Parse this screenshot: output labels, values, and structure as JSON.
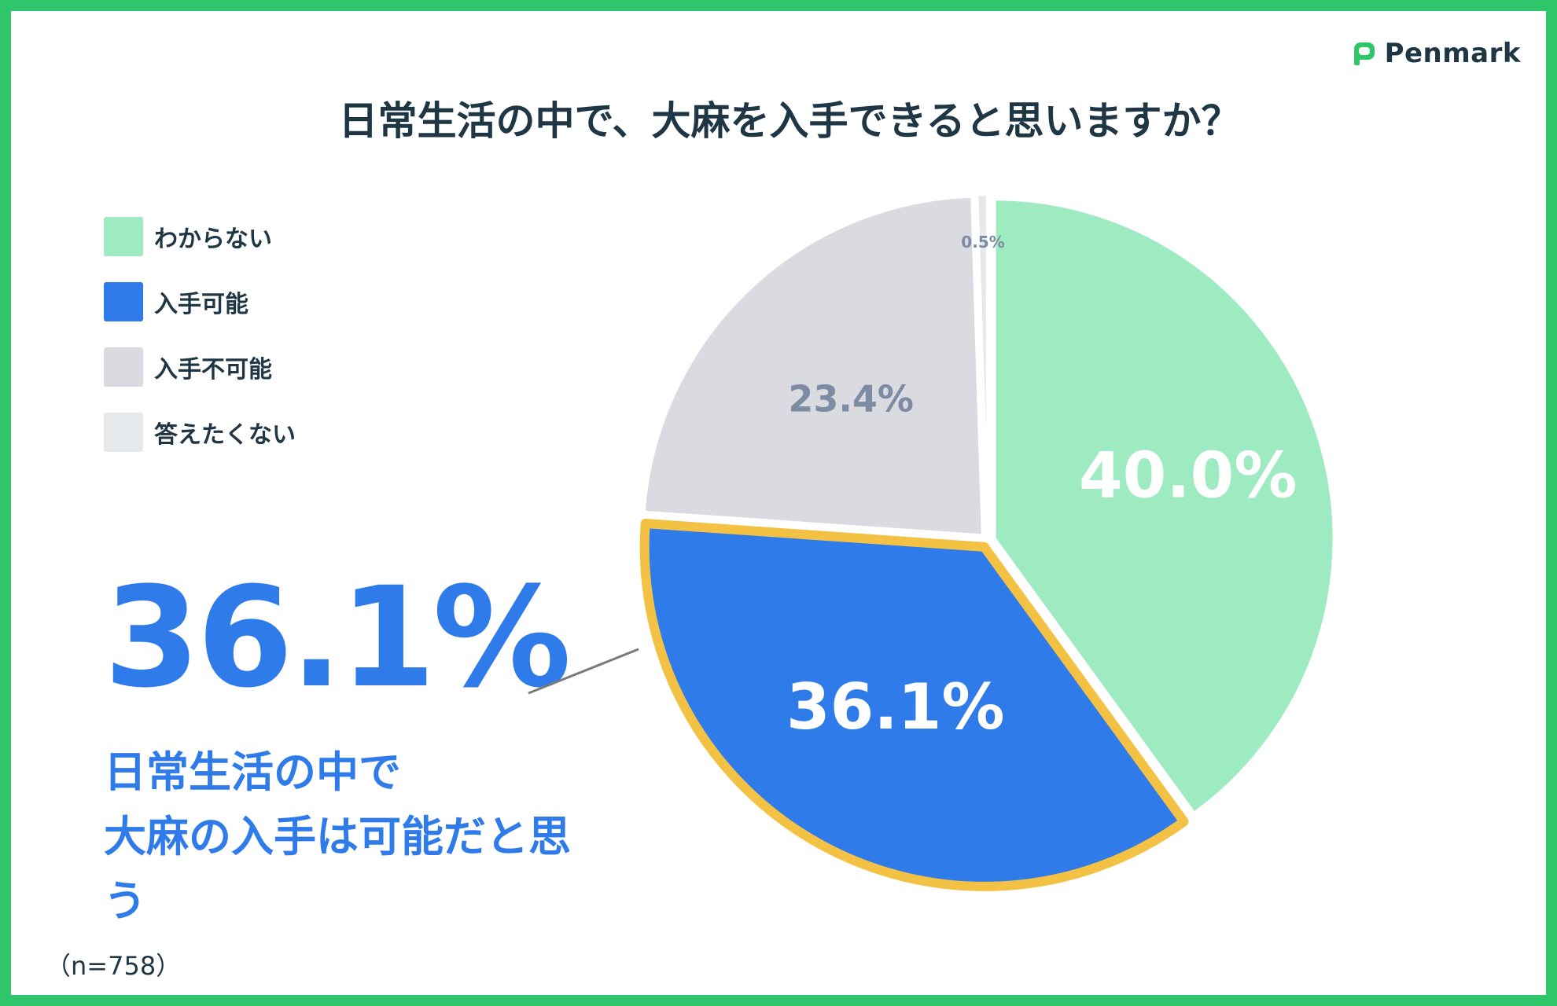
{
  "brand": {
    "name": "Penmark",
    "logo_icon": "speech-bubble-icon",
    "color": "#2fc56b"
  },
  "chart_data": {
    "type": "pie",
    "title": "日常生活の中で、大麻を入手できると思いますか？",
    "categories": [
      "わからない",
      "入手可能",
      "入手不可能",
      "答えたくない"
    ],
    "values": [
      40.0,
      36.1,
      23.4,
      0.5
    ],
    "labels": [
      "40.0%",
      "36.1%",
      "23.4%",
      "0.5%"
    ],
    "colors": [
      "#9eeac1",
      "#2f7bea",
      "#d9dbe0",
      "#e6e9eb"
    ],
    "label_colors": [
      "#ffffff",
      "#ffffff",
      "#7d8ba3",
      "#7d8ba3"
    ],
    "highlight_index": 1,
    "highlight_color": "#f3c143",
    "legend_position": "top-left",
    "sample_size_label": "（n=758）"
  },
  "highlight": {
    "value": "36.1%",
    "caption_line1": "日常生活の中で",
    "caption_line2": "大麻の入手は可能だと思う"
  }
}
